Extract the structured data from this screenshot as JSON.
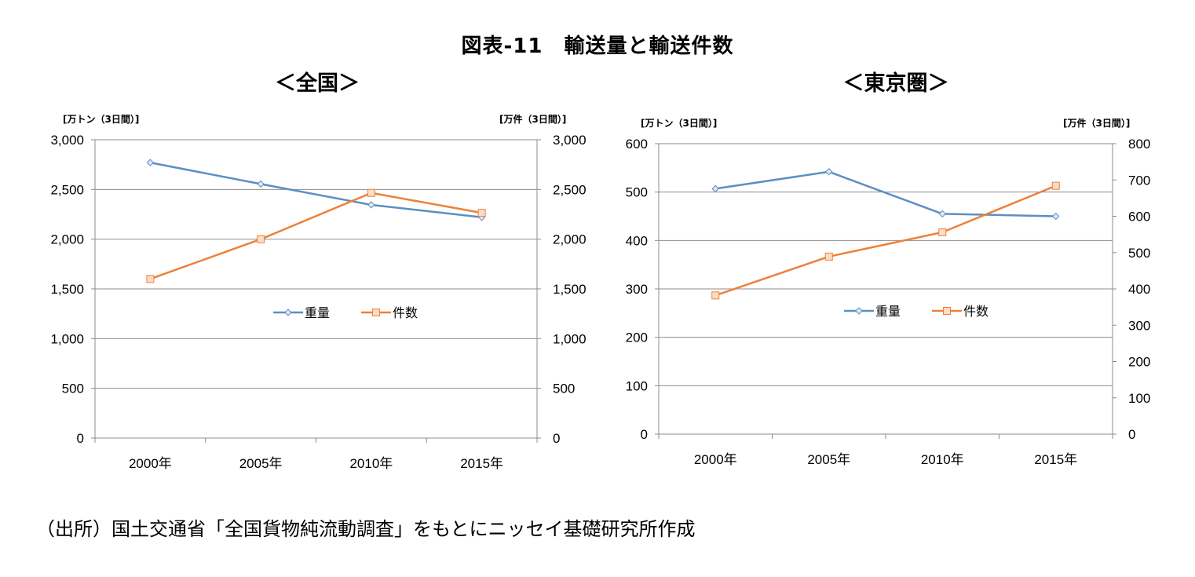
{
  "figure_title": "図表-11　輸送量と輸送件数",
  "source_note": "（出所）国土交通省「全国貨物純流動調査」をもとにニッセイ基礎研究所作成",
  "colors": {
    "weight": "#5b8fc5",
    "count": "#ec8139",
    "grid": "#8c8c8c"
  },
  "chart_data": [
    {
      "type": "line",
      "title": "＜全国＞",
      "y_left_label": "[万トン（3日間）]",
      "y_right_label": "[万件（3日間）]",
      "categories": [
        "2000年",
        "2005年",
        "2010年",
        "2015年"
      ],
      "y_left_lim": [
        0,
        3000
      ],
      "y_right_lim": [
        0,
        3000
      ],
      "y_left_ticks": [
        "0",
        "500",
        "1,000",
        "1,500",
        "2,000",
        "2,500",
        "3,000"
      ],
      "y_right_ticks": [
        "0",
        "500",
        "1,000",
        "1,500",
        "2,000",
        "2,500",
        "3,000"
      ],
      "legend_position": "center",
      "series": [
        {
          "name": "重量",
          "axis": "left",
          "marker": "diamond",
          "values": [
            2770,
            2555,
            2345,
            2220
          ]
        },
        {
          "name": "件数",
          "axis": "right",
          "marker": "square",
          "values": [
            1600,
            2000,
            2465,
            2265
          ]
        }
      ]
    },
    {
      "type": "line",
      "title": "＜東京圏＞",
      "y_left_label": "[万トン（3日間）]",
      "y_right_label": "[万件（3日間）]",
      "categories": [
        "2000年",
        "2005年",
        "2010年",
        "2015年"
      ],
      "y_left_lim": [
        0,
        600
      ],
      "y_right_lim": [
        0,
        800
      ],
      "y_left_ticks": [
        "0",
        "100",
        "200",
        "300",
        "400",
        "500",
        "600"
      ],
      "y_right_ticks": [
        "0",
        "100",
        "200",
        "300",
        "400",
        "500",
        "600",
        "700",
        "800"
      ],
      "legend_position": "center",
      "series": [
        {
          "name": "重量",
          "axis": "left",
          "marker": "diamond",
          "values": [
            507,
            542,
            455,
            450
          ]
        },
        {
          "name": "件数",
          "axis": "right",
          "marker": "square",
          "values": [
            382,
            489,
            556,
            684
          ]
        }
      ]
    }
  ]
}
